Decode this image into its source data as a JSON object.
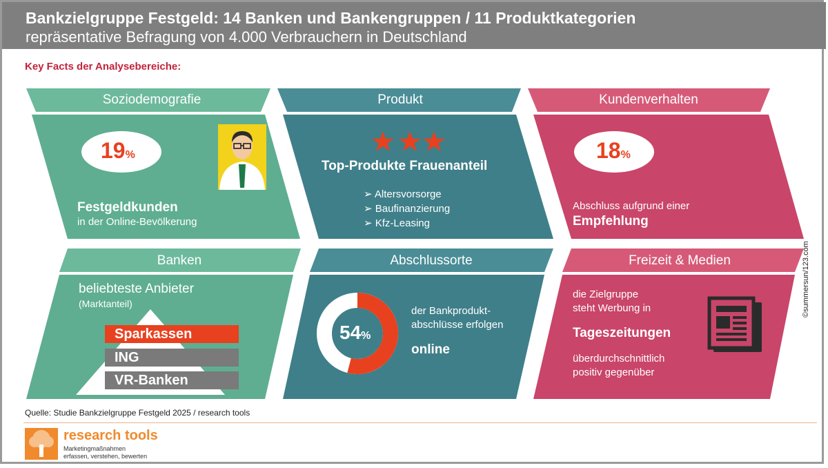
{
  "header": {
    "title": "Bankzielgruppe Festgeld: 14 Banken und Bankengruppen / 11 Produktkategorien",
    "subtitle": "repräsentative Befragung von 4.000 Verbrauchern in Deutschland"
  },
  "section_label": "Key Facts der Analysebereiche:",
  "colors": {
    "header_bg": "#7f7f7f",
    "green_band": "#6db99c",
    "green_body": "#5fae91",
    "teal_band": "#4a8d96",
    "teal_body": "#3f7f89",
    "pink_band": "#d65a78",
    "pink_body": "#c94569",
    "accent_orange": "#e8411f",
    "bar_grey": "#7a7a7a"
  },
  "panels": {
    "soziodemografie": {
      "title": "Soziodemografie",
      "value": "19",
      "unit": "%",
      "headline": "Festgeldkunden",
      "sub": "in der Online-Bevölkerung"
    },
    "produkt": {
      "title": "Produkt",
      "stars": 3,
      "headline": "Top-Produkte Frauenanteil",
      "items": [
        "Altersvorsorge",
        "Baufinanzierung",
        "Kfz-Leasing"
      ]
    },
    "kundenverhalten": {
      "title": "Kundenverhalten",
      "value": "18",
      "unit": "%",
      "line1": "Abschluss aufgrund einer",
      "headline": "Empfehlung"
    },
    "banken": {
      "title": "Banken",
      "line1": "beliebteste Anbieter",
      "line2": "(Marktanteil)",
      "ranking": [
        "Sparkassen",
        "ING",
        "VR-Banken"
      ]
    },
    "abschlussorte": {
      "title": "Abschlussorte",
      "value": "54",
      "unit": "%",
      "share": 0.54,
      "line1": "der Bankprodukt-",
      "line2": "abschlüsse erfolgen",
      "headline": "online"
    },
    "freizeit": {
      "title": "Freizeit & Medien",
      "line1": "die Zielgruppe",
      "line2": "steht Werbung in",
      "headline": "Tageszeitungen",
      "line3": "überdurchschnittlich",
      "line4": "positiv gegenüber",
      "icon": "newspaper-icon"
    }
  },
  "source": "Quelle: Studie Bankzielgruppe Festgeld 2025 / research tools",
  "logo": {
    "name": "research tools",
    "tagline1": "Marketingmaßnahmen",
    "tagline2": "erfassen, verstehen, bewerten"
  },
  "credit": "©summersun/123.com"
}
